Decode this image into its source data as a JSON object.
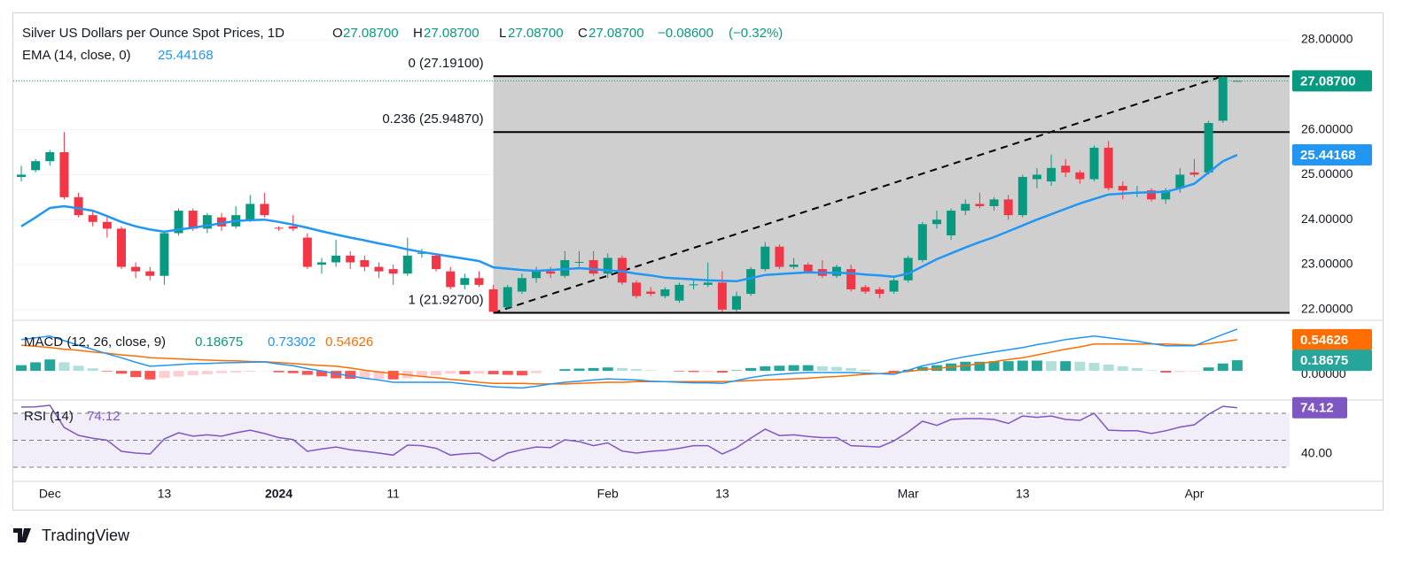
{
  "chart_data": {
    "type": "candlestick",
    "title": "Silver US Dollars per Ounce Spot Prices, 1D",
    "header": {
      "open_prefix": "O",
      "open": "27.08700",
      "high_prefix": "H",
      "high": "27.08700",
      "low_prefix": "L",
      "low": "27.08700",
      "close_prefix": "C",
      "close": "27.08700",
      "change": "−0.08600",
      "change_pct": "(−0.32%)"
    },
    "categories": [
      null,
      null,
      "Dec",
      null,
      null,
      null,
      null,
      null,
      null,
      null,
      "13",
      null,
      null,
      null,
      null,
      null,
      null,
      null,
      "2024",
      null,
      null,
      null,
      null,
      null,
      null,
      null,
      "11",
      null,
      null,
      null,
      null,
      null,
      null,
      null,
      null,
      null,
      null,
      null,
      null,
      null,
      null,
      "Feb",
      null,
      null,
      null,
      null,
      null,
      null,
      null,
      "13",
      null,
      null,
      null,
      null,
      null,
      null,
      null,
      null,
      null,
      null,
      null,
      null,
      "Mar",
      null,
      null,
      null,
      null,
      null,
      null,
      null,
      "13",
      null,
      null,
      null,
      null,
      null,
      null,
      null,
      null,
      null,
      null,
      null,
      "Apr",
      null,
      null,
      null
    ],
    "open": [
      24.95,
      25.1,
      25.3,
      25.5,
      24.5,
      24.1,
      23.95,
      23.8,
      22.95,
      22.85,
      22.75,
      23.7,
      24.2,
      23.8,
      24.05,
      23.85,
      24.0,
      24.35,
      23.82,
      23.85,
      23.6,
      23.0,
      23.05,
      23.2,
      23.1,
      22.95,
      22.9,
      22.8,
      23.24,
      23.2,
      22.85,
      22.55,
      22.7,
      22.45,
      22.05,
      22.4,
      22.7,
      22.85,
      22.75,
      23.05,
      23.1,
      22.8,
      23.15,
      22.6,
      22.4,
      22.3,
      22.2,
      22.54,
      22.55,
      22.6,
      22.0,
      22.35,
      22.9,
      23.4,
      22.95,
      23.0,
      22.9,
      22.75,
      22.9,
      22.5,
      22.45,
      22.4,
      22.65,
      23.1,
      23.9,
      23.65,
      24.2,
      24.35,
      24.3,
      24.45,
      24.1,
      24.9,
      24.85,
      25.2,
      25.05,
      24.9,
      25.6,
      24.75,
      24.59,
      24.65,
      24.45,
      24.7,
      25.05,
      25.05,
      26.2,
      27.087
    ],
    "high": [
      25.2,
      25.35,
      25.55,
      25.95,
      24.6,
      24.2,
      24.05,
      23.85,
      23.05,
      22.95,
      23.75,
      24.25,
      24.25,
      24.15,
      24.15,
      24.3,
      24.55,
      24.6,
      23.85,
      24.1,
      23.7,
      23.15,
      23.55,
      23.3,
      23.2,
      23.05,
      23.0,
      23.6,
      23.35,
      23.25,
      22.95,
      22.8,
      22.85,
      22.55,
      22.55,
      22.8,
      22.95,
      22.95,
      23.3,
      23.3,
      23.3,
      23.25,
      23.2,
      22.65,
      22.5,
      22.5,
      22.6,
      22.65,
      23.05,
      22.85,
      22.4,
      22.95,
      23.5,
      23.45,
      23.15,
      23.05,
      23.1,
      23.0,
      23.0,
      22.55,
      22.5,
      22.7,
      23.2,
      23.95,
      24.2,
      24.25,
      24.45,
      24.6,
      24.5,
      24.55,
      25.0,
      25.15,
      25.45,
      25.35,
      25.1,
      25.65,
      25.75,
      24.85,
      24.75,
      24.7,
      24.7,
      25.15,
      25.35,
      26.2,
      27.191,
      27.087
    ],
    "low": [
      24.85,
      25.05,
      25.2,
      24.45,
      24.05,
      23.85,
      23.6,
      22.9,
      22.7,
      22.65,
      22.55,
      23.65,
      23.75,
      23.7,
      23.75,
      23.8,
      23.95,
      24.05,
      23.75,
      23.75,
      22.9,
      22.8,
      22.95,
      22.9,
      22.85,
      22.7,
      22.55,
      22.75,
      23.15,
      22.85,
      22.45,
      22.45,
      22.5,
      21.927,
      22.0,
      22.35,
      22.6,
      22.7,
      22.7,
      22.95,
      22.75,
      22.7,
      22.55,
      22.25,
      22.3,
      22.25,
      22.15,
      22.45,
      22.5,
      21.95,
      21.95,
      22.3,
      22.85,
      22.9,
      22.9,
      22.8,
      22.7,
      22.7,
      22.4,
      22.35,
      22.25,
      22.35,
      22.6,
      23.05,
      23.8,
      23.55,
      24.1,
      24.25,
      24.2,
      24.0,
      24.05,
      24.7,
      24.75,
      24.95,
      24.8,
      24.85,
      24.65,
      24.45,
      24.5,
      24.4,
      24.35,
      24.6,
      24.95,
      25.0,
      26.15,
      27.087
    ],
    "close": [
      25.0,
      25.3,
      25.5,
      24.5,
      24.1,
      23.95,
      23.8,
      22.95,
      22.85,
      22.75,
      23.7,
      24.2,
      23.8,
      24.1,
      23.85,
      24.1,
      24.35,
      24.1,
      23.8,
      23.8,
      22.95,
      23.05,
      23.2,
      23.05,
      22.95,
      22.85,
      22.8,
      23.2,
      23.26,
      22.9,
      22.5,
      22.7,
      22.55,
      21.95,
      22.5,
      22.7,
      22.85,
      22.8,
      23.1,
      23.06,
      22.8,
      23.15,
      22.6,
      22.3,
      22.35,
      22.45,
      22.55,
      22.56,
      22.6,
      22.0,
      22.3,
      22.9,
      23.4,
      22.95,
      23.0,
      22.85,
      22.75,
      22.95,
      22.45,
      22.4,
      22.35,
      22.65,
      23.15,
      23.9,
      24.0,
      24.2,
      24.35,
      24.3,
      24.45,
      24.1,
      24.95,
      25.0,
      25.15,
      25.05,
      24.9,
      25.6,
      24.7,
      24.65,
      24.61,
      24.45,
      24.65,
      25.0,
      25.0,
      26.15,
      27.173,
      27.087
    ],
    "up_color": "#089981",
    "down_color": "#f23645",
    "ylim": [
      21.8,
      28.59
    ],
    "yticks": [
      {
        "value": 22,
        "label": "22.00000"
      },
      {
        "value": 23,
        "label": "23.00000"
      },
      {
        "value": 24,
        "label": "24.00000"
      },
      {
        "value": 25,
        "label": "25.00000"
      },
      {
        "value": 26,
        "label": "26.00000"
      },
      {
        "value": 28,
        "label": "28.00000"
      }
    ],
    "grid": true,
    "ema": {
      "label": "EMA (14, close, 0)",
      "value_label": "25.44168",
      "color": "#2196f3",
      "values": [
        23.85,
        24.05,
        24.26,
        24.3,
        24.25,
        24.2,
        24.08,
        23.95,
        23.85,
        23.78,
        23.73,
        23.78,
        23.82,
        23.87,
        23.92,
        23.97,
        23.99,
        24.0,
        23.95,
        23.89,
        23.82,
        23.74,
        23.67,
        23.6,
        23.54,
        23.47,
        23.41,
        23.34,
        23.28,
        23.23,
        23.18,
        23.13,
        23.08,
        22.94,
        22.91,
        22.88,
        22.86,
        22.88,
        22.9,
        22.92,
        22.9,
        22.87,
        22.85,
        22.8,
        22.76,
        22.71,
        22.69,
        22.67,
        22.65,
        22.64,
        22.63,
        22.7,
        22.77,
        22.79,
        22.81,
        22.83,
        22.82,
        22.82,
        22.81,
        22.78,
        22.76,
        22.73,
        22.8,
        22.96,
        23.12,
        23.25,
        23.38,
        23.5,
        23.61,
        23.74,
        23.87,
        24.0,
        24.12,
        24.24,
        24.36,
        24.46,
        24.56,
        24.58,
        24.6,
        24.61,
        24.62,
        24.7,
        24.8,
        25.05,
        25.3,
        25.44168
      ]
    },
    "fib": {
      "color": "#000000",
      "fill": "#cfcfcf",
      "levels": [
        {
          "label": "0 (27.19100)",
          "value": 27.191
        },
        {
          "label": "0.236 (25.94870)",
          "value": 25.9487
        },
        {
          "label": "1 (21.92700)",
          "value": 21.927
        }
      ]
    },
    "macd": {
      "label": "MACD (12, 26, close, 9)",
      "hist_label": "0.18675",
      "macd_label": "0.73302",
      "signal_label": "0.54626",
      "ylim": [
        -0.48,
        0.84
      ],
      "yticks": [
        {
          "value": 0,
          "label": "0.00000"
        }
      ],
      "macd_color": "#2196f3",
      "signal_color": "#ff6d00",
      "hist_colors": {
        "pos_up": "#26a69a",
        "pos_down": "#b2dfdb",
        "neg_up": "#ffcdd2",
        "neg_down": "#ff5252"
      },
      "macd": [
        0.55,
        0.58,
        0.61,
        0.53,
        0.45,
        0.375,
        0.3,
        0.23,
        0.15,
        0.08,
        0.095,
        0.11,
        0.125,
        0.13,
        0.14,
        0.145,
        0.15,
        0.156,
        0.12,
        0.09,
        0.04,
        0.0,
        -0.05,
        -0.09,
        -0.13,
        -0.16,
        -0.2,
        -0.2,
        -0.2,
        -0.2,
        -0.2,
        -0.23,
        -0.25,
        -0.28,
        -0.29,
        -0.3,
        -0.27,
        -0.23,
        -0.2,
        -0.18,
        -0.16,
        -0.14,
        -0.15,
        -0.16,
        -0.18,
        -0.19,
        -0.2,
        -0.21,
        -0.21,
        -0.22,
        -0.17,
        -0.12,
        -0.08,
        -0.06,
        -0.04,
        -0.03,
        -0.03,
        -0.03,
        -0.03,
        -0.04,
        -0.05,
        -0.06,
        0.01,
        0.09,
        0.14,
        0.2,
        0.25,
        0.29,
        0.33,
        0.37,
        0.41,
        0.46,
        0.5,
        0.55,
        0.58,
        0.61,
        0.58,
        0.55,
        0.52,
        0.48,
        0.44,
        0.44,
        0.44,
        0.54,
        0.64,
        0.73302
      ],
      "signal": [
        0.45,
        0.43,
        0.41,
        0.38,
        0.36,
        0.33,
        0.31,
        0.28,
        0.26,
        0.23,
        0.22,
        0.21,
        0.2,
        0.19,
        0.18,
        0.175,
        0.165,
        0.16,
        0.145,
        0.13,
        0.11,
        0.095,
        0.08,
        0.05,
        0.01,
        -0.02,
        -0.05,
        -0.07,
        -0.1,
        -0.12,
        -0.15,
        -0.17,
        -0.2,
        -0.22,
        -0.22,
        -0.22,
        -0.23,
        -0.23,
        -0.23,
        -0.22,
        -0.21,
        -0.2,
        -0.2,
        -0.19,
        -0.19,
        -0.19,
        -0.19,
        -0.19,
        -0.19,
        -0.19,
        -0.18,
        -0.17,
        -0.16,
        -0.15,
        -0.14,
        -0.13,
        -0.11,
        -0.1,
        -0.08,
        -0.06,
        -0.05,
        -0.03,
        -0.01,
        0.02,
        0.04,
        0.07,
        0.09,
        0.13,
        0.16,
        0.2,
        0.23,
        0.28,
        0.33,
        0.38,
        0.42,
        0.47,
        0.47,
        0.47,
        0.47,
        0.47,
        0.47,
        0.46,
        0.45,
        0.48,
        0.51,
        0.54626
      ],
      "hist": [
        0.1,
        0.15,
        0.2,
        0.15,
        0.09,
        0.045,
        -0.01,
        -0.05,
        -0.11,
        -0.15,
        -0.125,
        -0.1,
        -0.075,
        -0.06,
        -0.04,
        -0.03,
        -0.015,
        -0.004,
        -0.025,
        -0.04,
        -0.07,
        -0.095,
        -0.13,
        -0.14,
        -0.14,
        -0.14,
        -0.15,
        -0.13,
        -0.1,
        -0.08,
        -0.05,
        -0.06,
        -0.05,
        -0.06,
        -0.07,
        -0.08,
        -0.04,
        0.0,
        0.03,
        0.04,
        0.05,
        0.06,
        0.05,
        0.03,
        0.01,
        0.0,
        -0.01,
        -0.02,
        -0.02,
        -0.03,
        0.01,
        0.05,
        0.08,
        0.09,
        0.1,
        0.1,
        0.08,
        0.07,
        0.05,
        0.02,
        0.0,
        -0.03,
        0.02,
        0.07,
        0.1,
        0.13,
        0.16,
        0.16,
        0.17,
        0.17,
        0.18,
        0.18,
        0.17,
        0.17,
        0.16,
        0.14,
        0.11,
        0.08,
        0.05,
        0.01,
        -0.03,
        -0.02,
        -0.01,
        0.06,
        0.13,
        0.18675
      ]
    },
    "rsi": {
      "label": "RSI (14)",
      "value_label": "74.12",
      "color": "#7e57c2",
      "band_color": "#ede7f6",
      "ylim": [
        22.1,
        77.9
      ],
      "yticks": [
        {
          "value": 40,
          "label": "40.00"
        }
      ],
      "levels": [
        70,
        50,
        30
      ],
      "values": [
        74.6,
        74.8,
        75.9,
        59.5,
        53.6,
        51.5,
        50.0,
        41.8,
        40.5,
        39.8,
        51.0,
        55.6,
        53.0,
        54.0,
        53.0,
        55.5,
        57.5,
        55.0,
        52.0,
        50.5,
        41.8,
        43.5,
        45.0,
        43.0,
        41.8,
        40.5,
        39.0,
        46.4,
        46.0,
        44.0,
        39.0,
        40.0,
        40.5,
        34.6,
        40.5,
        43.0,
        45.0,
        44.5,
        50.3,
        49.0,
        46.0,
        48.0,
        42.0,
        40.5,
        41.8,
        42.5,
        44.0,
        46.0,
        46.0,
        39.8,
        44.5,
        51.6,
        58.2,
        53.5,
        54.0,
        52.8,
        52.0,
        52.0,
        46.0,
        45.5,
        45.0,
        49.5,
        56.2,
        64.1,
        61.0,
        65.4,
        66.0,
        66.0,
        65.4,
        62.5,
        68.0,
        67.0,
        68.0,
        65.4,
        64.8,
        70.0,
        57.5,
        57.0,
        57.0,
        55.0,
        57.0,
        59.8,
        61.5,
        69.3,
        75.2,
        74.12
      ]
    },
    "brand": "TradingView"
  }
}
